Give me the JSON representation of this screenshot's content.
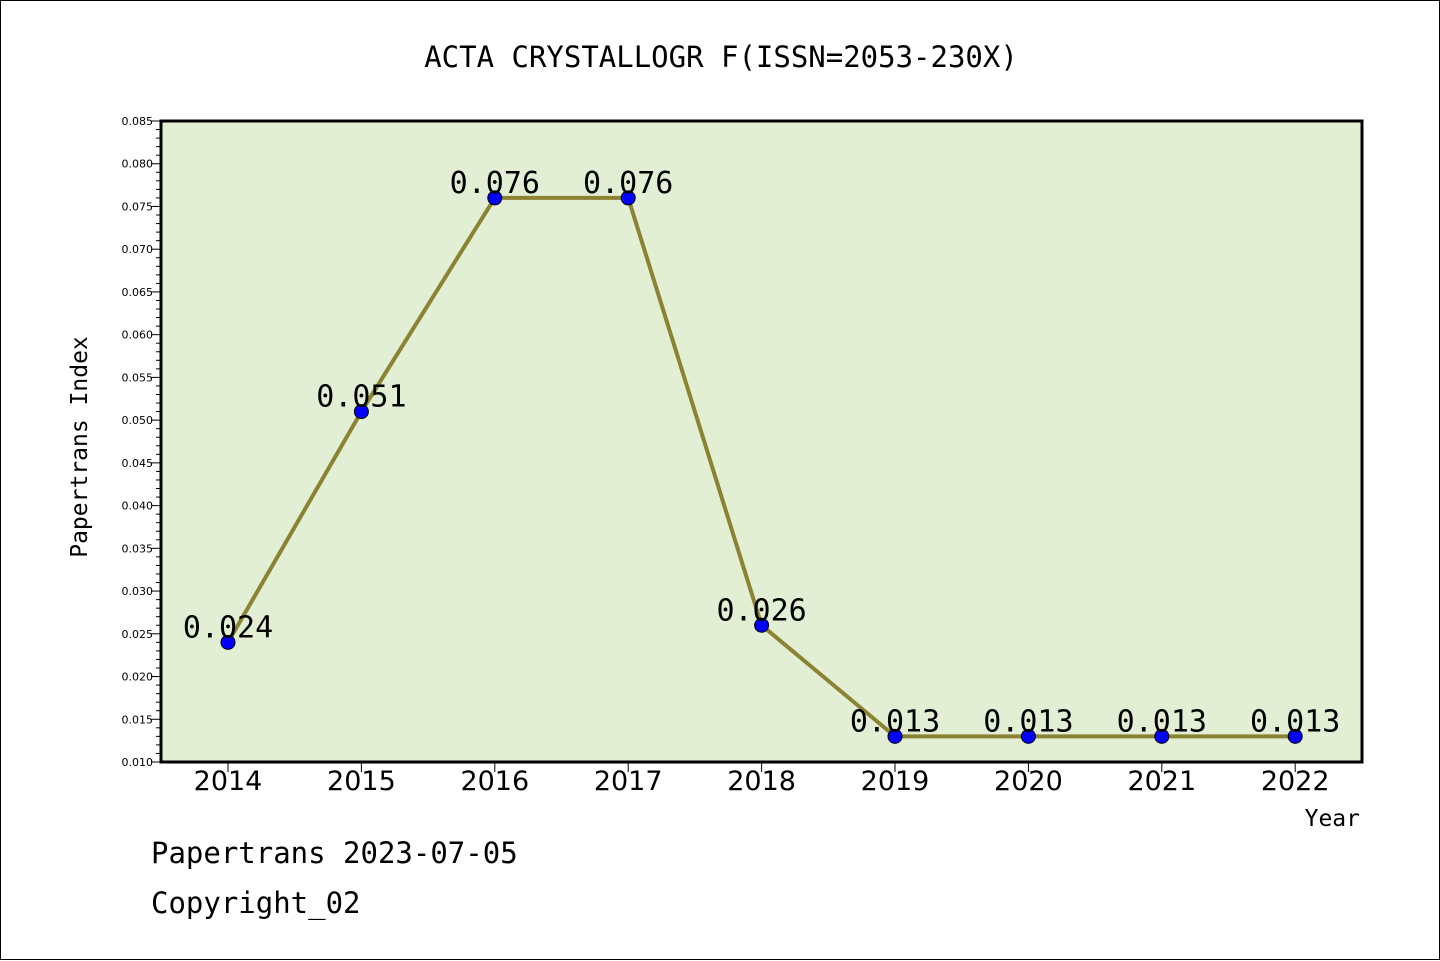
{
  "chart_data": {
    "type": "line",
    "title": "ACTA CRYSTALLOGR F(ISSN=2053-230X)",
    "xlabel": "Year",
    "ylabel": "Papertrans Index",
    "categories": [
      "2014",
      "2015",
      "2016",
      "2017",
      "2018",
      "2019",
      "2020",
      "2021",
      "2022"
    ],
    "series": [
      {
        "values": [
          0.024,
          0.051,
          0.076,
          0.076,
          0.026,
          0.013,
          0.013,
          0.013,
          0.013
        ]
      }
    ],
    "data_labels": [
      "0.024",
      "0.051",
      "0.076",
      "0.076",
      "0.026",
      "0.013",
      "0.013",
      "0.013",
      "0.013"
    ],
    "ylim": [
      0.01,
      0.085
    ],
    "yticks": [
      "0.010",
      "0.015",
      "0.020",
      "0.025",
      "0.030",
      "0.035",
      "0.040",
      "0.045",
      "0.050",
      "0.055",
      "0.060",
      "0.065",
      "0.070",
      "0.075",
      "0.080",
      "0.085"
    ],
    "grid": false,
    "legend": "none",
    "colors": {
      "plot_background": "#e2efd5",
      "line": "#8b8332",
      "marker": "#0000ff"
    }
  },
  "footer": {
    "line1": "Papertrans 2023-07-05",
    "line2": "Copyright_02"
  }
}
